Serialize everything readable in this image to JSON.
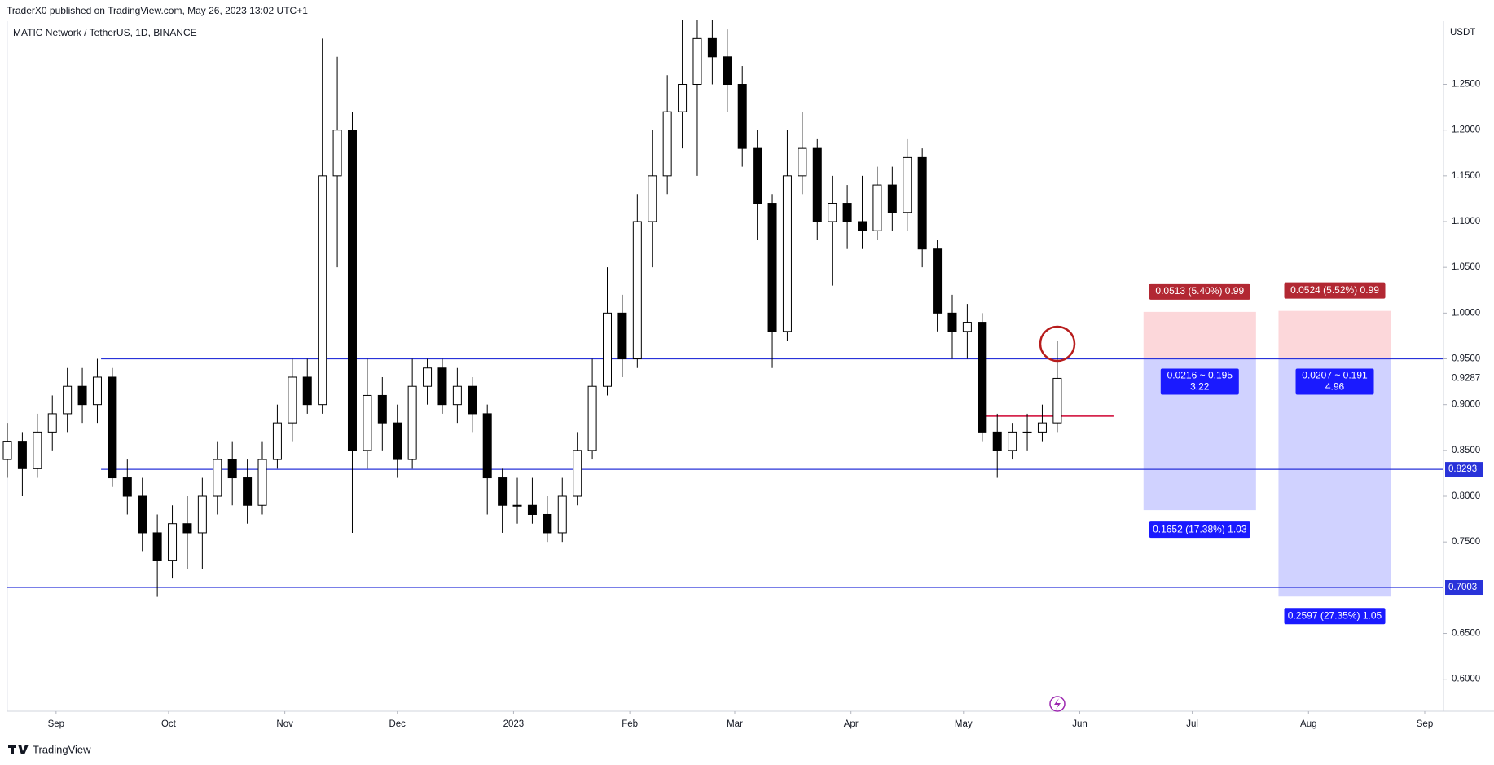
{
  "header": {
    "published": "TraderX0 published on TradingView.com, May 26, 2023 13:02 UTC+1",
    "brand": "TradingView"
  },
  "chart_data": {
    "type": "candlestick",
    "title": "MATIC Network / TetherUS, 1D, BINANCE",
    "y_unit": "USDT",
    "up_color": "#ffffff",
    "down_color": "#000000",
    "line_color": "#000000",
    "xlim": [
      -13,
      370
    ],
    "ylim": [
      0.565,
      1.319
    ],
    "xticks": [
      {
        "value": 0,
        "label": "Sep"
      },
      {
        "value": 30,
        "label": "Oct"
      },
      {
        "value": 61,
        "label": "Nov"
      },
      {
        "value": 91,
        "label": "Dec"
      },
      {
        "value": 122,
        "label": "2023"
      },
      {
        "value": 153,
        "label": "Feb"
      },
      {
        "value": 181,
        "label": "Mar"
      },
      {
        "value": 212,
        "label": "Apr"
      },
      {
        "value": 242,
        "label": "May"
      },
      {
        "value": 273,
        "label": "Jun"
      },
      {
        "value": 303,
        "label": "Jul"
      },
      {
        "value": 334,
        "label": "Aug"
      },
      {
        "value": 365,
        "label": "Sep"
      }
    ],
    "yticks": [
      {
        "value": 0.6,
        "label": "0.6000"
      },
      {
        "value": 0.65,
        "label": "0.6500"
      },
      {
        "value": 0.75,
        "label": "0.7500"
      },
      {
        "value": 0.8,
        "label": "0.8000"
      },
      {
        "value": 0.85,
        "label": "0.8500"
      },
      {
        "value": 0.9,
        "label": "0.9000"
      },
      {
        "value": 0.95,
        "label": "0.9500"
      },
      {
        "value": 1.0,
        "label": "1.0000"
      },
      {
        "value": 1.05,
        "label": "1.0500"
      },
      {
        "value": 1.1,
        "label": "1.1000"
      },
      {
        "value": 1.15,
        "label": "1.1500"
      },
      {
        "value": 1.2,
        "label": "1.2000"
      },
      {
        "value": 1.25,
        "label": "1.2500"
      }
    ],
    "x": [
      -13,
      -9,
      -5,
      -1,
      3,
      7,
      11,
      15,
      19,
      23,
      27,
      31,
      35,
      39,
      43,
      47,
      51,
      55,
      59,
      63,
      67,
      71,
      75,
      79,
      83,
      87,
      91,
      95,
      99,
      103,
      107,
      111,
      115,
      119,
      123,
      127,
      131,
      135,
      139,
      143,
      147,
      151,
      155,
      159,
      163,
      167,
      171,
      175,
      179,
      183,
      187,
      191,
      195,
      199,
      203,
      207,
      211,
      215,
      219,
      223,
      227,
      231,
      235,
      239,
      243,
      247,
      251,
      255,
      259,
      263,
      267
    ],
    "open": [
      0.84,
      0.86,
      0.83,
      0.87,
      0.89,
      0.92,
      0.9,
      0.93,
      0.82,
      0.8,
      0.76,
      0.73,
      0.77,
      0.76,
      0.8,
      0.84,
      0.82,
      0.79,
      0.84,
      0.88,
      0.93,
      0.9,
      1.15,
      1.2,
      0.85,
      0.91,
      0.88,
      0.84,
      0.92,
      0.94,
      0.9,
      0.92,
      0.89,
      0.82,
      0.79,
      0.79,
      0.78,
      0.76,
      0.8,
      0.85,
      0.92,
      1.0,
      0.95,
      1.1,
      1.15,
      1.22,
      1.25,
      1.3,
      1.28,
      1.25,
      1.18,
      1.12,
      0.98,
      1.15,
      1.18,
      1.1,
      1.12,
      1.1,
      1.09,
      1.14,
      1.11,
      1.17,
      1.07,
      1.0,
      0.98,
      0.99,
      0.87,
      0.85,
      0.87,
      0.87,
      0.88
    ],
    "high": [
      0.88,
      0.87,
      0.89,
      0.91,
      0.94,
      0.94,
      0.95,
      0.94,
      0.84,
      0.82,
      0.78,
      0.79,
      0.8,
      0.82,
      0.86,
      0.86,
      0.84,
      0.86,
      0.9,
      0.95,
      0.95,
      1.3,
      1.28,
      1.22,
      0.95,
      0.93,
      0.9,
      0.95,
      0.95,
      0.95,
      0.94,
      0.93,
      0.9,
      0.83,
      0.82,
      0.82,
      0.8,
      0.82,
      0.87,
      0.95,
      1.05,
      1.02,
      1.13,
      1.2,
      1.26,
      1.32,
      1.32,
      1.32,
      1.31,
      1.27,
      1.2,
      1.13,
      1.2,
      1.22,
      1.19,
      1.15,
      1.14,
      1.15,
      1.16,
      1.16,
      1.19,
      1.18,
      1.08,
      1.02,
      1.01,
      1.0,
      0.89,
      0.88,
      0.89,
      0.9,
      0.97
    ],
    "low": [
      0.82,
      0.8,
      0.82,
      0.85,
      0.87,
      0.88,
      0.88,
      0.81,
      0.78,
      0.74,
      0.69,
      0.71,
      0.72,
      0.72,
      0.78,
      0.79,
      0.77,
      0.78,
      0.83,
      0.86,
      0.89,
      0.89,
      1.05,
      0.76,
      0.83,
      0.85,
      0.82,
      0.83,
      0.9,
      0.89,
      0.88,
      0.87,
      0.78,
      0.76,
      0.77,
      0.77,
      0.75,
      0.75,
      0.79,
      0.84,
      0.91,
      0.93,
      0.94,
      1.05,
      1.13,
      1.18,
      1.15,
      1.25,
      1.22,
      1.16,
      1.08,
      0.94,
      0.97,
      1.13,
      1.08,
      1.03,
      1.07,
      1.07,
      1.08,
      1.09,
      1.09,
      1.05,
      0.98,
      0.95,
      0.95,
      0.86,
      0.82,
      0.84,
      0.85,
      0.86,
      0.87
    ],
    "close": [
      0.86,
      0.83,
      0.87,
      0.89,
      0.92,
      0.9,
      0.93,
      0.82,
      0.8,
      0.76,
      0.73,
      0.77,
      0.76,
      0.8,
      0.84,
      0.82,
      0.79,
      0.84,
      0.88,
      0.93,
      0.9,
      1.15,
      1.2,
      0.85,
      0.91,
      0.88,
      0.84,
      0.92,
      0.94,
      0.9,
      0.92,
      0.89,
      0.82,
      0.79,
      0.79,
      0.78,
      0.76,
      0.8,
      0.85,
      0.92,
      1.0,
      0.95,
      1.1,
      1.15,
      1.22,
      1.25,
      1.3,
      1.28,
      1.25,
      1.18,
      1.12,
      0.98,
      1.15,
      1.18,
      1.1,
      1.12,
      1.1,
      1.09,
      1.14,
      1.11,
      1.17,
      1.07,
      1.0,
      0.98,
      0.99,
      0.87,
      0.85,
      0.87,
      0.87,
      0.88,
      0.9287
    ],
    "last_price": 0.9287,
    "hlines": [
      {
        "value": 0.95,
        "from": 12,
        "color": "#2933d9"
      },
      {
        "value": 0.8293,
        "from": 12,
        "color": "#2933d9",
        "badge": true
      },
      {
        "value": 0.7003,
        "color": "#2933d9",
        "badge": true
      },
      {
        "value": 0.8875,
        "from": 247,
        "to": 282,
        "color": "#d6264e"
      }
    ],
    "positions": [
      {
        "from": 290,
        "to": 320,
        "entry": 0.95,
        "stop": 1.0013,
        "target": 0.7848,
        "stop_label": "0.0513 (5.40%) 0.99",
        "mid_label": "0.0216 ~ 0.195",
        "ratio_label": "3.22",
        "target_label": "0.1652 (17.38%) 1.03"
      },
      {
        "from": 326,
        "to": 356,
        "entry": 0.95,
        "stop": 1.0024,
        "target": 0.6903,
        "stop_label": "0.0524 (5.52%) 0.99",
        "mid_label": "0.0207 ~ 0.191",
        "ratio_label": "4.96",
        "target_label": "0.2597 (27.35%) 1.05"
      }
    ]
  }
}
